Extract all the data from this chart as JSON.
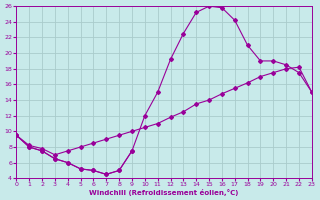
{
  "xlabel": "Windchill (Refroidissement éolien,°C)",
  "background_color": "#c8eaea",
  "grid_color": "#aacccc",
  "line_color": "#990099",
  "markersize": 2.0,
  "linewidth": 0.8,
  "xlim": [
    0,
    23
  ],
  "ylim": [
    4,
    26
  ],
  "xticks": [
    0,
    1,
    2,
    3,
    4,
    5,
    6,
    7,
    8,
    9,
    10,
    11,
    12,
    13,
    14,
    15,
    16,
    17,
    18,
    19,
    20,
    21,
    22,
    23
  ],
  "yticks": [
    4,
    6,
    8,
    10,
    12,
    14,
    16,
    18,
    20,
    22,
    24,
    26
  ],
  "curve_upper_x": [
    0,
    1,
    2,
    3,
    4,
    5,
    6,
    7,
    8,
    9,
    10,
    11,
    12,
    13,
    14,
    15,
    16,
    17,
    18,
    19,
    20,
    21,
    22,
    23
  ],
  "curve_upper_y": [
    9.5,
    8.0,
    7.5,
    6.5,
    6.0,
    5.2,
    5.0,
    4.5,
    5.0,
    7.5,
    12.0,
    15.0,
    19.2,
    22.5,
    25.2,
    26.0,
    25.8,
    24.2,
    21.0,
    19.0,
    19.0,
    18.5,
    17.5,
    15.0
  ],
  "curve_mid_x": [
    0,
    1,
    2,
    3,
    4,
    5,
    6,
    7,
    8,
    9,
    10,
    11,
    12,
    13,
    14,
    15,
    16,
    17,
    18,
    19,
    20,
    21,
    22,
    23
  ],
  "curve_mid_y": [
    9.5,
    8.2,
    7.8,
    7.0,
    7.5,
    8.0,
    8.5,
    9.0,
    9.5,
    10.0,
    10.5,
    11.0,
    11.8,
    12.5,
    13.5,
    14.0,
    14.8,
    15.5,
    16.2,
    17.0,
    17.5,
    18.0,
    18.2,
    15.0
  ],
  "curve_lower_x": [
    0,
    1,
    2,
    3,
    4,
    5,
    6,
    7,
    8,
    9
  ],
  "curve_lower_y": [
    9.5,
    8.0,
    7.5,
    6.5,
    6.0,
    5.2,
    5.0,
    4.5,
    5.0,
    7.5
  ]
}
